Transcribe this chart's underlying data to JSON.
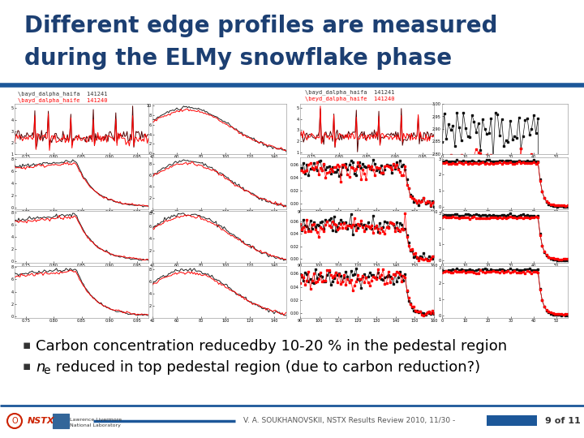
{
  "title_line1": "Different edge profiles are measured",
  "title_line2": "during the ELMy snowflake phase",
  "title_color": "#1C3F72",
  "title_fontsize": 20,
  "background_color": "#FFFFFF",
  "separator_color": "#1C5799",
  "bullet1": "Carbon concentration reducedby 10-20 % in the pedestal region",
  "bullet2_plain": " reduced in top pedestal region (due to carbon reduction?)",
  "bullet2_italic": "n",
  "bullet2_sub": "e",
  "bullet_fontsize": 13,
  "bullet_color": "#000000",
  "footer_text": "V. A. SOUKHANOVSKII, NSTX Results Review 2010, 11/30 -",
  "footer_page": "9 of 11",
  "footer_color": "#555555",
  "footer_bar_color": "#1C5799",
  "nstx_color": "#CC2200",
  "label_left1": "\\bayd_dalpha_haifa  141241",
  "label_left2": "\\bayd_dalpha_haife  141240",
  "label_right1": "\\bayd_dalpha_haifa  141241",
  "label_right2": "\\beyd_dalpha_haife  141240"
}
